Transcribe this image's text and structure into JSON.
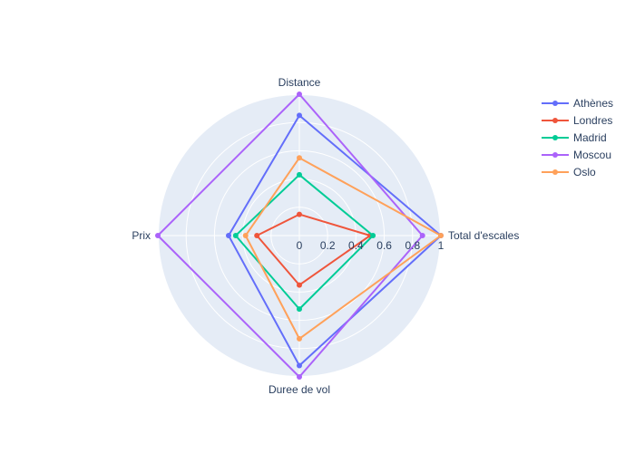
{
  "chart_data": {
    "type": "radar",
    "axes": [
      "Total d'escales",
      "Distance",
      "Prix",
      "Duree de vol"
    ],
    "radial_range": [
      0,
      1
    ],
    "radial_ticks": [
      "0",
      "0.2",
      "0.4",
      "0.6",
      "0.8",
      "1"
    ],
    "radial_tick_values": [
      0,
      0.2,
      0.4,
      0.6,
      0.8,
      1
    ],
    "grid": true,
    "legend_position": "top-right",
    "series": [
      {
        "name": "Athènes",
        "color": "#636efa",
        "values": [
          1.0,
          0.85,
          0.5,
          0.92
        ]
      },
      {
        "name": "Londres",
        "color": "#ef553b",
        "values": [
          0.5,
          0.15,
          0.3,
          0.35
        ]
      },
      {
        "name": "Madrid",
        "color": "#00cc96",
        "values": [
          0.52,
          0.43,
          0.45,
          0.52
        ]
      },
      {
        "name": "Moscou",
        "color": "#ab63fa",
        "values": [
          0.87,
          1.0,
          1.0,
          1.0
        ]
      },
      {
        "name": "Oslo",
        "color": "#ffa15a",
        "values": [
          1.0,
          0.55,
          0.38,
          0.73
        ]
      }
    ]
  }
}
